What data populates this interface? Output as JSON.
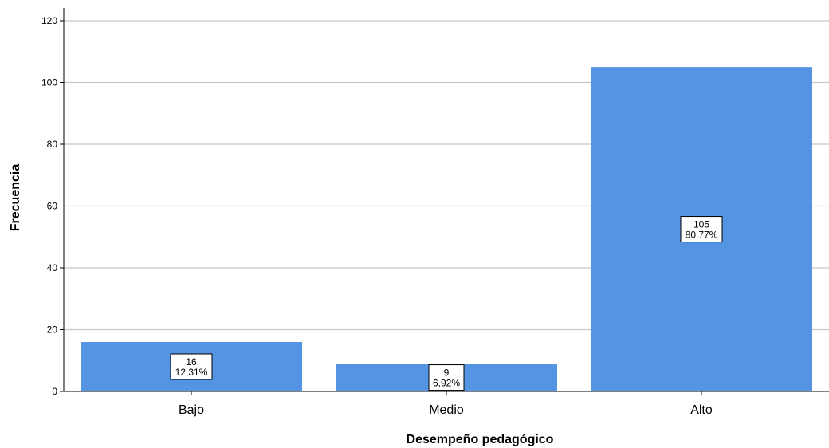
{
  "chart_data": {
    "type": "bar",
    "title": "",
    "xlabel": "Desempeño pedagógico",
    "ylabel": "Frecuencia",
    "categories": [
      "Bajo",
      "Medio",
      "Alto"
    ],
    "values": [
      16,
      9,
      105
    ],
    "percent_labels": [
      "12,31%",
      "6,92%",
      "80,77%"
    ],
    "ylim": [
      0,
      120
    ],
    "yticks": [
      0,
      20,
      40,
      60,
      80,
      100,
      120
    ],
    "grid": true,
    "legend": "none",
    "colors": {
      "bar": "#5593E3",
      "grid": "#C8C8C8",
      "axis": "#000000"
    }
  }
}
